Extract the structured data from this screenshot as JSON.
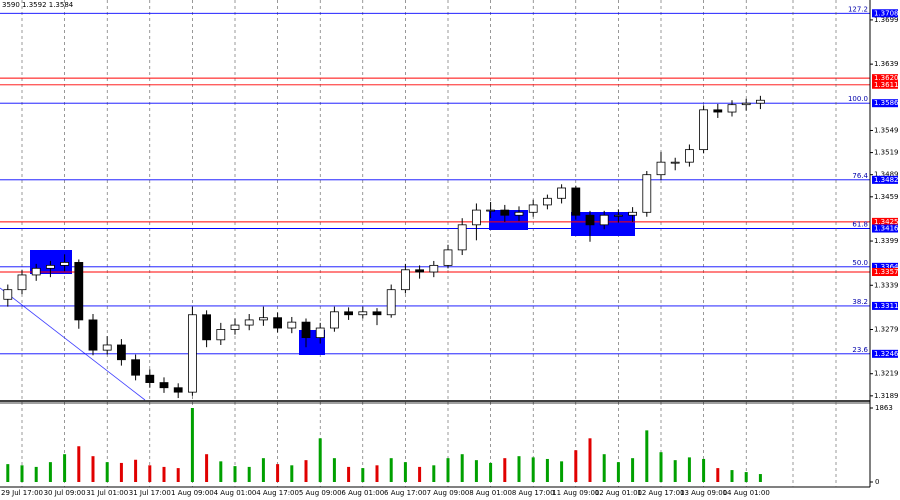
{
  "header": {
    "quote": "3590 1.3592 1.3584"
  },
  "chart_data": {
    "type": "candlestick",
    "categories": [
      null,
      "29 Jul 17:00",
      null,
      null,
      "30 Jul 09:00",
      null,
      null,
      "31 Jul 01:00",
      null,
      null,
      "31 Jul 17:00",
      null,
      null,
      "1 Aug 09:00",
      null,
      null,
      "4 Aug 01:00",
      null,
      null,
      "4 Aug 17:00",
      null,
      null,
      "5 Aug 09:00",
      null,
      null,
      "6 Aug 01:00",
      null,
      null,
      "6 Aug 17:00",
      null,
      null,
      "7 Aug 09:00",
      null,
      null,
      "8 Aug 01:00",
      null,
      null,
      "8 Aug 17:00",
      null,
      null,
      "11 Aug 09:00",
      null,
      null,
      "12 Aug 01:00",
      null,
      null,
      "12 Aug 17:00",
      null,
      null,
      "13 Aug 09:00",
      null,
      null,
      "14 Aug 01:00",
      null
    ],
    "open": [
      1.332,
      1.3333,
      1.3353,
      1.3362,
      1.3366,
      1.337,
      1.3292,
      1.3251,
      1.3258,
      1.3238,
      1.3217,
      1.3207,
      1.32,
      1.3194,
      1.3299,
      1.3265,
      1.3279,
      1.3285,
      1.3292,
      1.3295,
      1.3281,
      1.3289,
      1.3268,
      1.3281,
      1.3303,
      1.3299,
      1.3303,
      1.3299,
      1.3333,
      1.336,
      1.3357,
      1.3366,
      1.3387,
      1.3421,
      1.3441,
      1.3441,
      1.3434,
      1.3438,
      1.3448,
      1.3457,
      1.3471,
      1.3434,
      1.3421,
      1.3434,
      1.3434,
      1.3438,
      1.3489,
      1.3506,
      1.3506,
      1.3523,
      1.3577,
      1.3574,
      1.3584,
      1.3586
    ],
    "high": [
      1.334,
      1.336,
      1.3368,
      1.3372,
      1.3381,
      1.3374,
      1.33,
      1.327,
      1.3266,
      1.3245,
      1.3225,
      1.3214,
      1.3206,
      1.331,
      1.3305,
      1.3288,
      1.3294,
      1.33,
      1.331,
      1.3302,
      1.3296,
      1.3294,
      1.3288,
      1.331,
      1.3309,
      1.331,
      1.3308,
      1.334,
      1.3368,
      1.3366,
      1.3372,
      1.3394,
      1.343,
      1.345,
      1.3452,
      1.3448,
      1.3446,
      1.3455,
      1.3462,
      1.3476,
      1.3474,
      1.344,
      1.344,
      1.3442,
      1.3445,
      1.3494,
      1.352,
      1.3512,
      1.353,
      1.3583,
      1.3585,
      1.359,
      1.3592,
      1.3596
    ],
    "low": [
      1.331,
      1.3327,
      1.3345,
      1.335,
      1.3358,
      1.328,
      1.3244,
      1.3245,
      1.323,
      1.321,
      1.32,
      1.3193,
      1.3186,
      1.3189,
      1.3255,
      1.3258,
      1.3272,
      1.3278,
      1.3284,
      1.3275,
      1.3274,
      1.3255,
      1.326,
      1.3276,
      1.3292,
      1.3294,
      1.3285,
      1.3295,
      1.3328,
      1.3348,
      1.335,
      1.3362,
      1.338,
      1.34,
      1.343,
      1.3425,
      1.3426,
      1.3432,
      1.3442,
      1.345,
      1.3428,
      1.3398,
      1.3415,
      1.3424,
      1.3425,
      1.3432,
      1.3482,
      1.3495,
      1.35,
      1.3518,
      1.3566,
      1.3568,
      1.3576,
      1.3578
    ],
    "close": [
      1.3333,
      1.3353,
      1.3362,
      1.3366,
      1.337,
      1.3292,
      1.3251,
      1.3258,
      1.3238,
      1.3217,
      1.3207,
      1.32,
      1.3194,
      1.3299,
      1.3265,
      1.3279,
      1.3285,
      1.3292,
      1.3295,
      1.3281,
      1.3289,
      1.3268,
      1.3281,
      1.3303,
      1.3299,
      1.3303,
      1.3299,
      1.3333,
      1.336,
      1.3357,
      1.3366,
      1.3387,
      1.3421,
      1.3441,
      1.3441,
      1.3434,
      1.3438,
      1.3448,
      1.3457,
      1.3471,
      1.3434,
      1.3421,
      1.3434,
      1.3434,
      1.3438,
      1.3489,
      1.3506,
      1.3506,
      1.3523,
      1.3577,
      1.3574,
      1.3584,
      1.3586,
      1.359
    ],
    "volume": [
      450,
      420,
      380,
      500,
      700,
      900,
      650,
      500,
      480,
      560,
      420,
      380,
      350,
      1863,
      700,
      520,
      400,
      380,
      600,
      450,
      420,
      550,
      1100,
      600,
      380,
      350,
      420,
      600,
      500,
      380,
      420,
      600,
      700,
      550,
      480,
      600,
      650,
      620,
      580,
      520,
      800,
      1100,
      700,
      500,
      600,
      1300,
      750,
      550,
      620,
      580,
      350,
      300,
      250,
      200
    ],
    "up_color": "#00a000",
    "down_color": "#e00000",
    "ylim": [
      1.3182,
      1.3726
    ],
    "yticks": [
      1.3699,
      1.3639,
      1.3549,
      1.3519,
      1.3489,
      1.3459,
      1.3399,
      1.3339,
      1.3279,
      1.3219,
      1.3189
    ],
    "vylim": [
      0,
      1863
    ],
    "vyticks": [
      1863,
      0
    ],
    "levels": [
      {
        "price": 1.3708,
        "fib": "127.2",
        "color": "#0000ff"
      },
      {
        "price": {
          "value": 1.362,
          "label": "1.3620"
        },
        "color": "#ff0000"
      },
      {
        "price": 1.3611,
        "color": "#ff0000"
      },
      {
        "price": 1.3586,
        "fib": "100.0",
        "color": "#0000ff"
      },
      {
        "price": 1.3482,
        "fib": "76.4",
        "color": "#0000ff"
      },
      {
        "price": 1.3425,
        "color": "#ff0000"
      },
      {
        "price": 1.3416,
        "fib": "61.8",
        "color": "#0000ff"
      },
      {
        "price": 1.3364,
        "fib": "50.0",
        "color": "#0000ff"
      },
      {
        "price": 1.3357,
        "color": "#ff0000"
      },
      {
        "price": 1.3311,
        "fib": "38.2",
        "color": "#0000ff"
      },
      {
        "price": 1.3246,
        "fib": "23.6",
        "color": "#0000ff"
      }
    ]
  }
}
